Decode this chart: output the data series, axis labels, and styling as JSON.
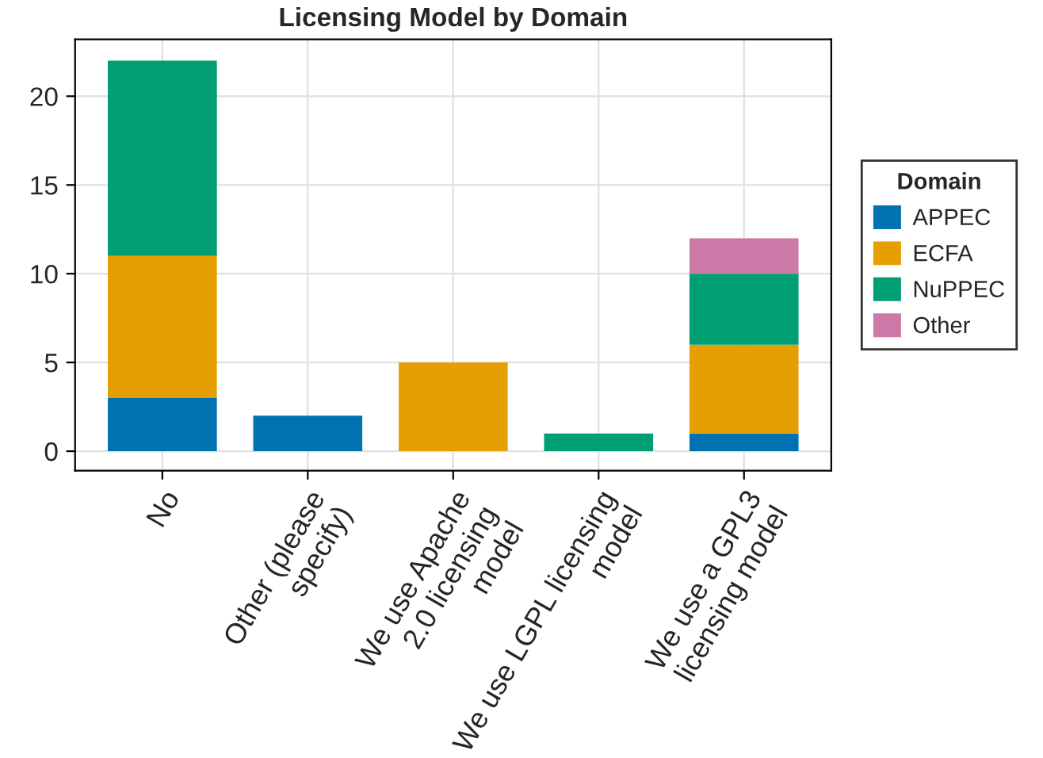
{
  "chart_data": {
    "type": "bar",
    "title": "Licensing Model by Domain",
    "legend_title": "Domain",
    "categories": [
      "No",
      "Other (please\nspecify)",
      "We use Apache\n2.0 licensing\nmodel",
      "We use LGPL licensing\nmodel",
      "We use a GPL3\nlicensing model"
    ],
    "stacked": true,
    "series": [
      {
        "name": "APPEC",
        "color": "#0072b2",
        "values": [
          3,
          2,
          0,
          0,
          1
        ]
      },
      {
        "name": "ECFA",
        "color": "#e69f00",
        "values": [
          8,
          0,
          5,
          0,
          5
        ]
      },
      {
        "name": "NuPPEC",
        "color": "#009e73",
        "values": [
          11,
          0,
          0,
          1,
          4
        ]
      },
      {
        "name": "Other",
        "color": "#cc79a7",
        "values": [
          0,
          0,
          0,
          0,
          2
        ]
      }
    ],
    "ylim": [
      -1.1,
      23.2
    ],
    "yticks": [
      0,
      5,
      10,
      15,
      20
    ],
    "grid": true,
    "legend": "right"
  }
}
